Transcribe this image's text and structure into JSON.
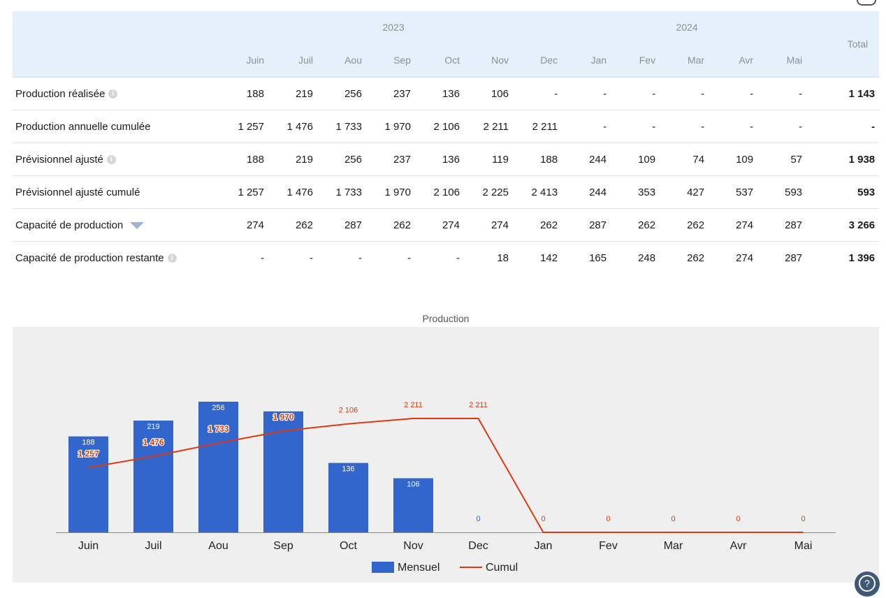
{
  "table": {
    "years": [
      "2023",
      "2024"
    ],
    "months": [
      "Juin",
      "Juil",
      "Aou",
      "Sep",
      "Oct",
      "Nov",
      "Dec",
      "Jan",
      "Fev",
      "Mar",
      "Avr",
      "Mai"
    ],
    "total_header": "Total",
    "rows": [
      {
        "label": "Production réalisée",
        "icon": "info",
        "values": [
          "188",
          "219",
          "256",
          "237",
          "136",
          "106",
          "-",
          "-",
          "-",
          "-",
          "-",
          "-"
        ],
        "total": "1 143"
      },
      {
        "label": "Production annuelle cumulée",
        "icon": "",
        "values": [
          "1 257",
          "1 476",
          "1 733",
          "1 970",
          "2 106",
          "2 211",
          "2 211",
          "-",
          "-",
          "-",
          "-",
          "-"
        ],
        "total": "-"
      },
      {
        "label": "Prévisionnel ajusté",
        "icon": "info",
        "values": [
          "188",
          "219",
          "256",
          "237",
          "136",
          "119",
          "188",
          "244",
          "109",
          "74",
          "109",
          "57"
        ],
        "total": "1 938"
      },
      {
        "label": "Prévisionnel ajusté cumulé",
        "icon": "",
        "values": [
          "1 257",
          "1 476",
          "1 733",
          "1 970",
          "2 106",
          "2 225",
          "2 413",
          "244",
          "353",
          "427",
          "537",
          "593"
        ],
        "total": "593"
      },
      {
        "label": "Capacité de production",
        "icon": "expand",
        "values": [
          "274",
          "262",
          "287",
          "262",
          "274",
          "274",
          "262",
          "287",
          "262",
          "262",
          "274",
          "287"
        ],
        "total": "3 266"
      },
      {
        "label": "Capacité de production restante",
        "icon": "info",
        "values": [
          "-",
          "-",
          "-",
          "-",
          "-",
          "18",
          "142",
          "165",
          "248",
          "262",
          "274",
          "287"
        ],
        "total": "1 396"
      }
    ]
  },
  "chart_data": {
    "type": "bar",
    "title": "Production",
    "categories": [
      "Juin",
      "Juil",
      "Aou",
      "Sep",
      "Oct",
      "Nov",
      "Dec",
      "Jan",
      "Fev",
      "Mar",
      "Avr",
      "Mai"
    ],
    "series": [
      {
        "name": "Mensuel",
        "kind": "bar",
        "color": "#3366cc",
        "values": [
          188,
          219,
          256,
          237,
          136,
          106,
          0,
          null,
          null,
          null,
          null,
          null
        ],
        "labels": [
          "188",
          "219",
          "256",
          "",
          "136",
          "106",
          "0",
          "",
          "",
          "",
          "",
          ""
        ]
      },
      {
        "name": "Cumul",
        "kind": "line",
        "color": "#dc3912",
        "values": [
          1257,
          1476,
          1733,
          1970,
          2106,
          2211,
          2211,
          0,
          0,
          0,
          0,
          0
        ],
        "labels": [
          "1 257",
          "1 476",
          "1 733",
          "1 970",
          "2 106",
          "2 211",
          "2 211",
          "0",
          "0",
          "0",
          "0",
          "0"
        ]
      }
    ],
    "legend": "bottom",
    "grid": false
  },
  "icons": {
    "help": "help-icon"
  }
}
